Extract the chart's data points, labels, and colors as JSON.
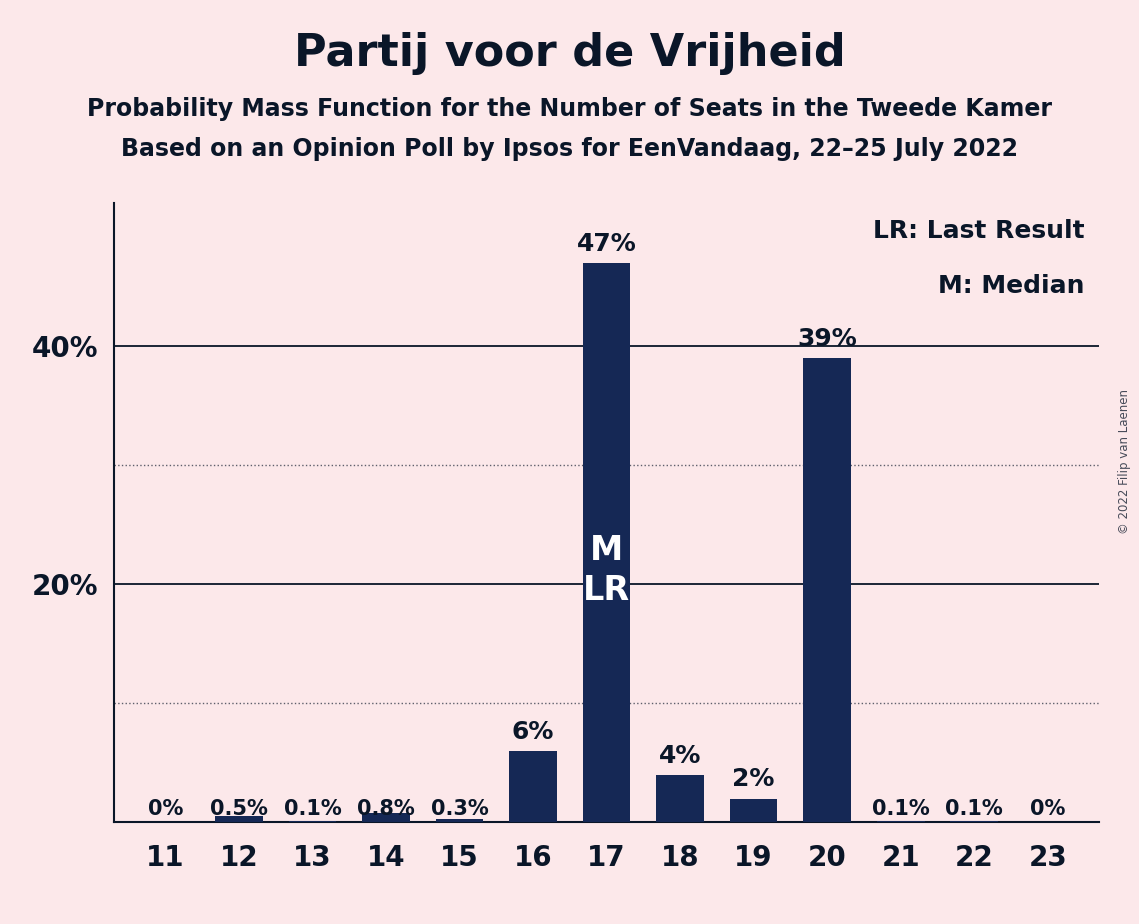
{
  "title": "Partij voor de Vrijheid",
  "subtitle1": "Probability Mass Function for the Number of Seats in the Tweede Kamer",
  "subtitle2": "Based on an Opinion Poll by Ipsos for EenVandaag, 22–25 July 2022",
  "copyright": "© 2022 Filip van Laenen",
  "categories": [
    11,
    12,
    13,
    14,
    15,
    16,
    17,
    18,
    19,
    20,
    21,
    22,
    23
  ],
  "values": [
    0.0,
    0.5,
    0.1,
    0.8,
    0.3,
    6.0,
    47.0,
    4.0,
    2.0,
    39.0,
    0.1,
    0.1,
    0.0
  ],
  "labels": [
    "0%",
    "0.5%",
    "0.1%",
    "0.8%",
    "0.3%",
    "6%",
    "47%",
    "4%",
    "2%",
    "39%",
    "0.1%",
    "0.1%",
    "0%"
  ],
  "bar_color": "#152855",
  "background_color": "#fce8ea",
  "text_color": "#0a1628",
  "bar_label_inside_idx": 6,
  "bar_label_inside_lines": [
    "M",
    "LR"
  ],
  "legend_text": [
    "LR: Last Result",
    "M: Median"
  ],
  "ylim_max": 52,
  "solid_yticks": [
    20,
    40
  ],
  "dotted_yticks": [
    10,
    30
  ],
  "title_fontsize": 32,
  "subtitle_fontsize": 17,
  "label_fontsize": 15,
  "tick_fontsize": 20,
  "inside_label_fontsize": 24,
  "legend_fontsize": 18
}
